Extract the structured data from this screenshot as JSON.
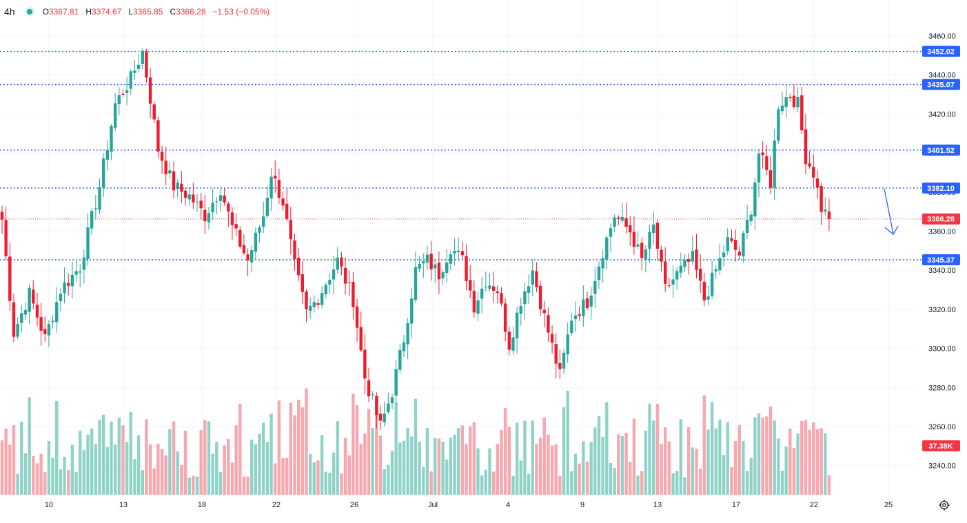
{
  "legend": {
    "timeframe": "4h",
    "open_label": "O",
    "open": "3367.81",
    "high_label": "H",
    "high": "3374.67",
    "low_label": "L",
    "low": "3365.85",
    "close_label": "C",
    "close": "3366.28",
    "change": "−1.53 (−0.05%)"
  },
  "colors": {
    "up": "#26a69a",
    "down": "#ef1c2e",
    "up_volume": "#8fd3c8",
    "down_volume": "#f7a7ad",
    "level_line": "#2962ff",
    "level_badge": "#2962ff",
    "price_badge": "#f23645",
    "grid": "#f0f3fa"
  },
  "chart_data": {
    "type": "candlestick",
    "instrument_interval": "4h",
    "ylim": [
      3223,
      3468
    ],
    "y_ticks": [
      "3460.00",
      "3440.00",
      "3420.00",
      "3400.00",
      "3380.00",
      "3360.00",
      "3340.00",
      "3320.00",
      "3300.00",
      "3280.00",
      "3260.00",
      "3240.00"
    ],
    "x_ticks": [
      "10",
      "13",
      "18",
      "22",
      "26",
      "Jul",
      "4",
      "9",
      "13",
      "17",
      "22",
      "25"
    ],
    "levels": [
      "3452.02",
      "3435.07",
      "3401.52",
      "3382.10",
      "3345.37"
    ],
    "last_price": "3366.28",
    "volume_label": "37.38K",
    "anchors": [
      {
        "bar": 0,
        "price": 3366
      },
      {
        "bar": 3,
        "price": 3308
      },
      {
        "bar": 7,
        "price": 3328
      },
      {
        "bar": 11,
        "price": 3305
      },
      {
        "bar": 15,
        "price": 3330
      },
      {
        "bar": 20,
        "price": 3342
      },
      {
        "bar": 25,
        "price": 3383
      },
      {
        "bar": 29,
        "price": 3425
      },
      {
        "bar": 33,
        "price": 3438
      },
      {
        "bar": 36,
        "price": 3452
      },
      {
        "bar": 38,
        "price": 3428
      },
      {
        "bar": 40,
        "price": 3402
      },
      {
        "bar": 44,
        "price": 3383
      },
      {
        "bar": 48,
        "price": 3378
      },
      {
        "bar": 52,
        "price": 3368
      },
      {
        "bar": 56,
        "price": 3382
      },
      {
        "bar": 59,
        "price": 3362
      },
      {
        "bar": 63,
        "price": 3345
      },
      {
        "bar": 67,
        "price": 3368
      },
      {
        "bar": 69,
        "price": 3390
      },
      {
        "bar": 72,
        "price": 3375
      },
      {
        "bar": 75,
        "price": 3342
      },
      {
        "bar": 78,
        "price": 3318
      },
      {
        "bar": 81,
        "price": 3326
      },
      {
        "bar": 86,
        "price": 3345
      },
      {
        "bar": 90,
        "price": 3325
      },
      {
        "bar": 93,
        "price": 3285
      },
      {
        "bar": 97,
        "price": 3260
      },
      {
        "bar": 100,
        "price": 3278
      },
      {
        "bar": 103,
        "price": 3305
      },
      {
        "bar": 106,
        "price": 3340
      },
      {
        "bar": 109,
        "price": 3345
      },
      {
        "bar": 112,
        "price": 3338
      },
      {
        "bar": 115,
        "price": 3352
      },
      {
        "bar": 118,
        "price": 3345
      },
      {
        "bar": 121,
        "price": 3322
      },
      {
        "bar": 124,
        "price": 3335
      },
      {
        "bar": 127,
        "price": 3330
      },
      {
        "bar": 130,
        "price": 3302
      },
      {
        "bar": 133,
        "price": 3325
      },
      {
        "bar": 136,
        "price": 3340
      },
      {
        "bar": 139,
        "price": 3316
      },
      {
        "bar": 143,
        "price": 3286
      },
      {
        "bar": 146,
        "price": 3316
      },
      {
        "bar": 150,
        "price": 3324
      },
      {
        "bar": 154,
        "price": 3350
      },
      {
        "bar": 157,
        "price": 3368
      },
      {
        "bar": 161,
        "price": 3360
      },
      {
        "bar": 164,
        "price": 3345
      },
      {
        "bar": 167,
        "price": 3362
      },
      {
        "bar": 170,
        "price": 3330
      },
      {
        "bar": 173,
        "price": 3338
      },
      {
        "bar": 177,
        "price": 3346
      },
      {
        "bar": 180,
        "price": 3325
      },
      {
        "bar": 183,
        "price": 3340
      },
      {
        "bar": 186,
        "price": 3355
      },
      {
        "bar": 189,
        "price": 3348
      },
      {
        "bar": 192,
        "price": 3372
      },
      {
        "bar": 194,
        "price": 3400
      },
      {
        "bar": 197,
        "price": 3385
      },
      {
        "bar": 199,
        "price": 3425
      },
      {
        "bar": 202,
        "price": 3430
      },
      {
        "bar": 204,
        "price": 3425
      },
      {
        "bar": 206,
        "price": 3398
      },
      {
        "bar": 208,
        "price": 3390
      },
      {
        "bar": 210,
        "price": 3372
      },
      {
        "bar": 212,
        "price": 3366.28
      }
    ]
  }
}
